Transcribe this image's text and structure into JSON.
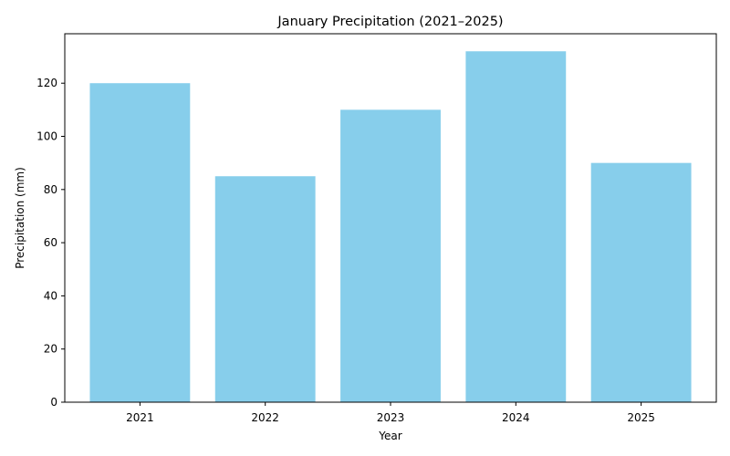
{
  "chart_data": {
    "type": "bar",
    "title": "January Precipitation (2021–2025)",
    "xlabel": "Year",
    "ylabel": "Precipitation (mm)",
    "categories": [
      "2021",
      "2022",
      "2023",
      "2024",
      "2025"
    ],
    "values": [
      120,
      85,
      110,
      132,
      90
    ],
    "ylim": [
      0,
      138.6
    ],
    "yticks": [
      0,
      20,
      40,
      60,
      80,
      100,
      120
    ],
    "bar_color": "#87CEEB",
    "grid": false,
    "legend": "none"
  }
}
